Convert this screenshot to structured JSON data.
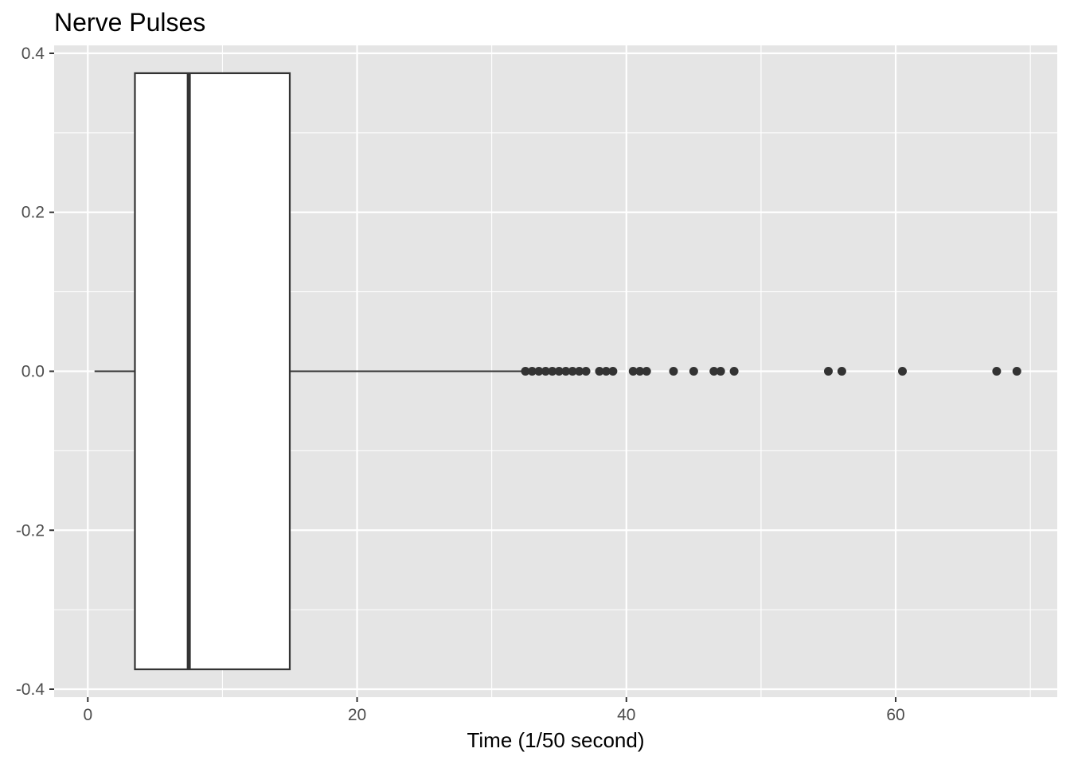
{
  "chart_data": {
    "type": "boxplot",
    "orientation": "horizontal",
    "title": "Nerve Pulses",
    "xlabel": "Time (1/50 second)",
    "ylabel": "",
    "xlim": [
      -2.5,
      72
    ],
    "ylim": [
      -0.41,
      0.41
    ],
    "x_ticks": [
      0,
      20,
      40,
      60
    ],
    "x_tick_labels": [
      "0",
      "20",
      "40",
      "60"
    ],
    "y_ticks": [
      0.4,
      0.2,
      0.0,
      -0.2,
      -0.4
    ],
    "y_tick_labels": [
      "0.4",
      "0.2",
      "0.0",
      "-0.2",
      "-0.4"
    ],
    "grid": true,
    "colors": {
      "panel_background": "#e5e5e5",
      "grid": "#ffffff",
      "box_fill": "#ffffff",
      "box_line": "#333333",
      "outlier": "#333333"
    },
    "box": {
      "whisker_low": 0.5,
      "q1": 3.5,
      "median": 7.5,
      "q3": 15.0,
      "whisker_high": 32.2,
      "y_center": 0,
      "y_half_width": 0.375
    },
    "outliers": [
      32.5,
      33.0,
      33.5,
      34.0,
      34.5,
      35.0,
      35.5,
      36.0,
      36.5,
      37.0,
      38.0,
      38.5,
      39.0,
      40.5,
      41.0,
      41.5,
      43.5,
      45.0,
      46.5,
      47.0,
      48.0,
      55.0,
      56.0,
      60.5,
      67.5,
      69.0
    ]
  }
}
